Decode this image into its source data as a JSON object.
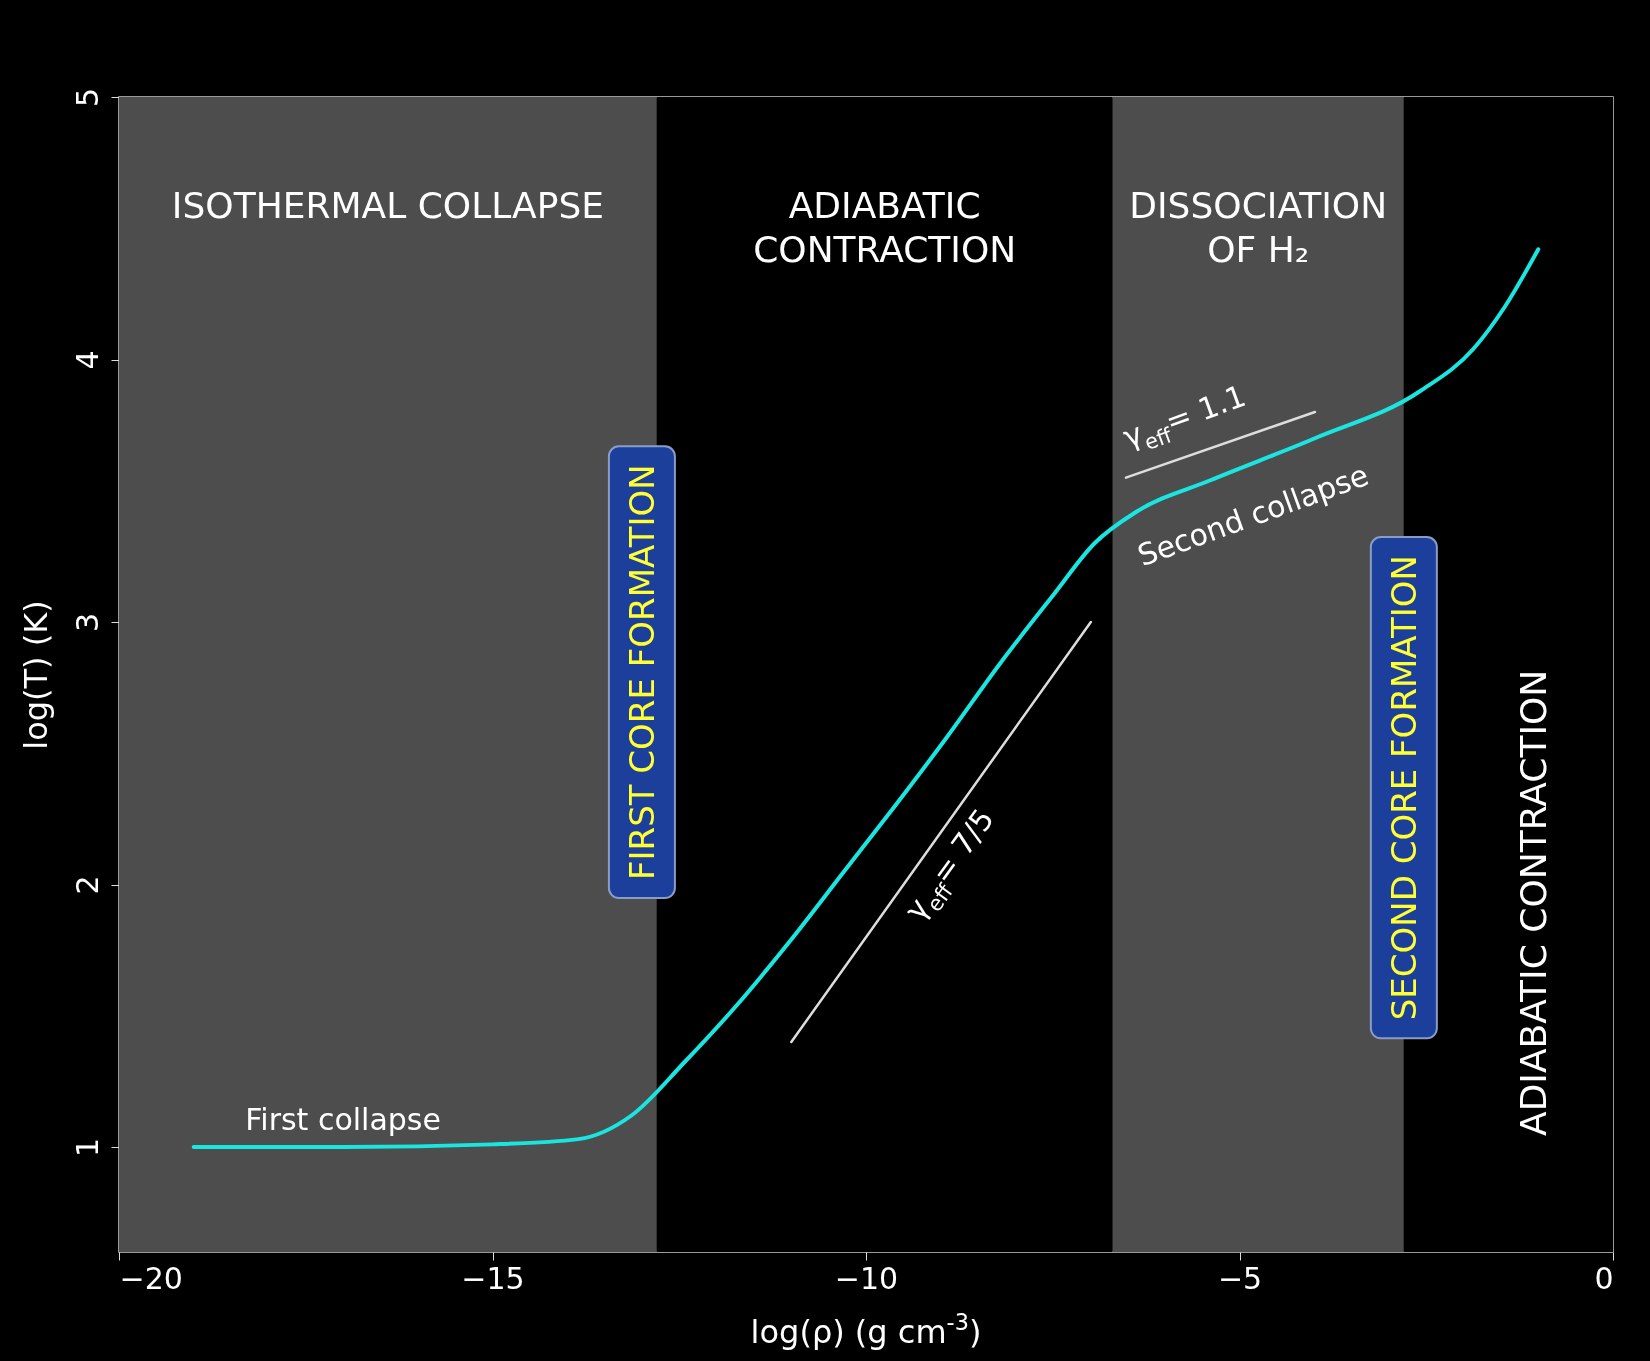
{
  "chart_data": {
    "type": "line",
    "xlabel": "log(ρ) (g cm$^{-3}$)",
    "ylabel": "log(T) (K)",
    "xlim": [
      -20,
      0
    ],
    "ylim": [
      0.6,
      5
    ],
    "xticks": [
      -20,
      -15,
      -10,
      -5,
      0
    ],
    "yticks": [
      1,
      2,
      3,
      4,
      5
    ],
    "x": [
      -19,
      -17,
      -15,
      -13.85,
      -13.14,
      -12.44,
      -11.73,
      -11.03,
      -10.32,
      -9.61,
      -8.92,
      -8.21,
      -7.5,
      -6.94,
      -6.38,
      -5.39,
      -3.99,
      -2.58,
      -1.87,
      -1.45,
      -1.0
    ],
    "series": [
      {
        "color": "#19e6e0",
        "values": [
          1.0,
          1.0,
          1.01,
          1.03,
          1.12,
          1.32,
          1.54,
          1.78,
          2.04,
          2.3,
          2.56,
          2.84,
          3.1,
          3.3,
          3.42,
          3.54,
          3.7,
          3.88,
          4.04,
          4.2,
          4.42
        ]
      },
      {
        "type": "line",
        "color": "#dddddd",
        "x": [
          -11.0,
          -6.99
        ],
        "values": [
          1.4,
          3.0
        ]
      },
      {
        "type": "line",
        "color": "#dddddd",
        "x": [
          -6.52,
          -3.99
        ],
        "values": [
          3.55,
          3.8
        ]
      }
    ],
    "bands": [
      {
        "axis": "x",
        "from": -20,
        "to": -12.8,
        "label": "ISOTHERMAL COLLAPSE",
        "color": "#4d4d4d"
      },
      {
        "axis": "x",
        "from": -12.8,
        "to": -6.7,
        "label": "ADIABATIC CONTRACTION",
        "color": "#000000"
      },
      {
        "axis": "x",
        "from": -6.7,
        "to": -2.8,
        "label": "DISSOCIATION OF H₂",
        "color": "#4d4d4d"
      },
      {
        "axis": "x",
        "from": -2.8,
        "to": 0,
        "label": "ADIABATIC CONTRACTION",
        "color": "#000000"
      }
    ],
    "annotations": [
      "First collapse",
      "Second collapse",
      "γ$_{eff}$ = 7/5",
      "γ$_{eff}$ = 1.1",
      "FIRST CORE FORMATION",
      "SECOND CORE FORMATION"
    ]
  }
}
